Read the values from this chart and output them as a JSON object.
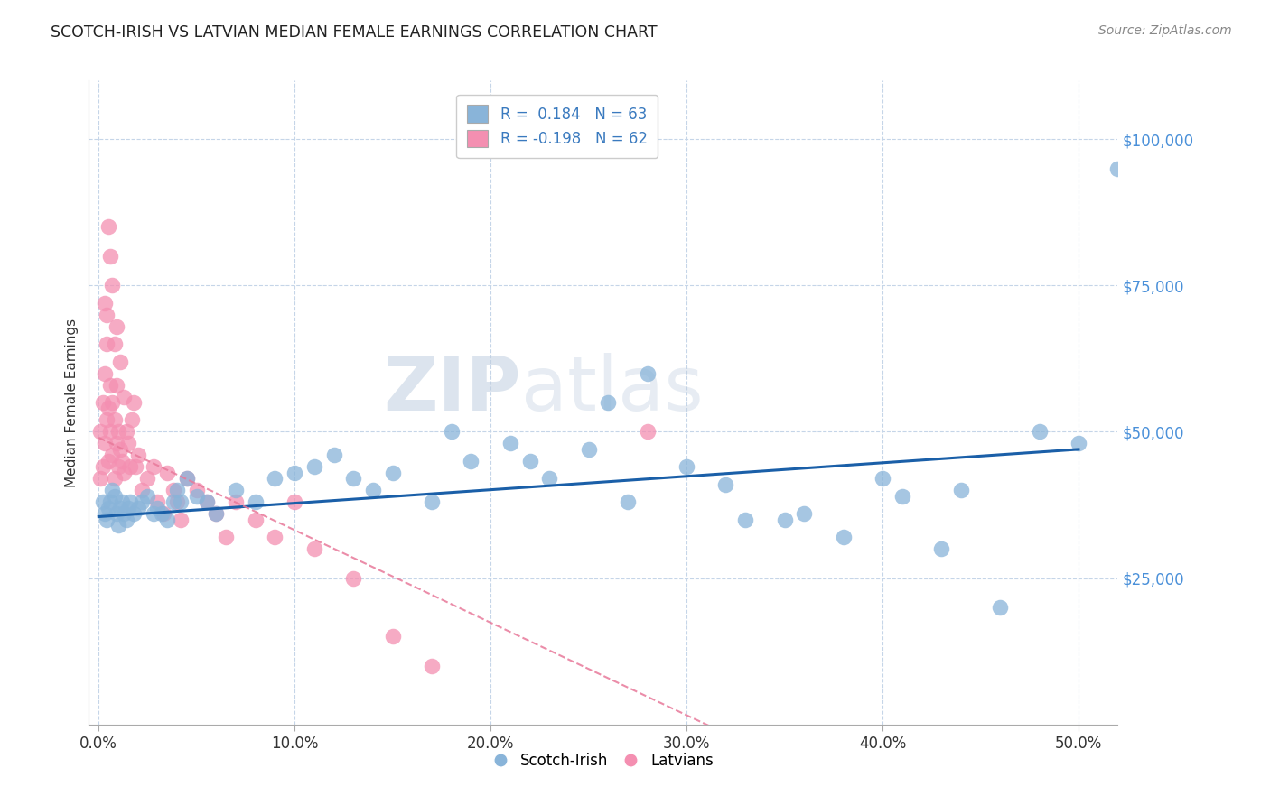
{
  "title": "SCOTCH-IRISH VS LATVIAN MEDIAN FEMALE EARNINGS CORRELATION CHART",
  "source": "Source: ZipAtlas.com",
  "ylabel": "Median Female Earnings",
  "x_tick_labels": [
    "0.0%",
    "10.0%",
    "20.0%",
    "30.0%",
    "40.0%",
    "50.0%"
  ],
  "x_tick_positions": [
    0.0,
    0.1,
    0.2,
    0.3,
    0.4,
    0.5
  ],
  "y_tick_labels": [
    "$25,000",
    "$50,000",
    "$75,000",
    "$100,000"
  ],
  "y_tick_values": [
    25000,
    50000,
    75000,
    100000
  ],
  "ylim": [
    0,
    110000
  ],
  "xlim": [
    -0.005,
    0.52
  ],
  "scotch_irish_color": "#89b4d9",
  "latvian_color": "#f48fb1",
  "line_scotch_color": "#1a5fa8",
  "line_latvian_color": "#e8799a",
  "watermark_zip": "ZIP",
  "watermark_atlas": "atlas",
  "scotch_irish_label": "Scotch-Irish",
  "latvian_label": "Latvians",
  "scotch_irish_x": [
    0.002,
    0.003,
    0.004,
    0.005,
    0.006,
    0.007,
    0.008,
    0.009,
    0.01,
    0.011,
    0.012,
    0.013,
    0.014,
    0.015,
    0.016,
    0.018,
    0.02,
    0.022,
    0.025,
    0.028,
    0.03,
    0.032,
    0.035,
    0.038,
    0.04,
    0.042,
    0.045,
    0.05,
    0.055,
    0.06,
    0.07,
    0.08,
    0.09,
    0.1,
    0.11,
    0.12,
    0.13,
    0.14,
    0.15,
    0.17,
    0.19,
    0.21,
    0.23,
    0.25,
    0.27,
    0.3,
    0.32,
    0.35,
    0.38,
    0.4,
    0.43,
    0.46,
    0.48,
    0.5,
    0.26,
    0.28,
    0.33,
    0.36,
    0.41,
    0.44,
    0.52,
    0.18,
    0.22
  ],
  "scotch_irish_y": [
    38000,
    36000,
    35000,
    37000,
    38000,
    40000,
    39000,
    36000,
    34000,
    37000,
    38000,
    36000,
    35000,
    37000,
    38000,
    36000,
    37000,
    38000,
    39000,
    36000,
    37000,
    36000,
    35000,
    38000,
    40000,
    38000,
    42000,
    39000,
    38000,
    36000,
    40000,
    38000,
    42000,
    43000,
    44000,
    46000,
    42000,
    40000,
    43000,
    38000,
    45000,
    48000,
    42000,
    47000,
    38000,
    44000,
    41000,
    35000,
    32000,
    42000,
    30000,
    20000,
    50000,
    48000,
    55000,
    60000,
    35000,
    36000,
    39000,
    40000,
    95000,
    50000,
    45000
  ],
  "latvian_x": [
    0.001,
    0.001,
    0.002,
    0.002,
    0.003,
    0.003,
    0.004,
    0.004,
    0.005,
    0.005,
    0.006,
    0.006,
    0.007,
    0.007,
    0.008,
    0.008,
    0.009,
    0.009,
    0.01,
    0.01,
    0.011,
    0.012,
    0.013,
    0.014,
    0.015,
    0.016,
    0.017,
    0.018,
    0.019,
    0.02,
    0.022,
    0.025,
    0.028,
    0.03,
    0.033,
    0.035,
    0.038,
    0.04,
    0.042,
    0.045,
    0.05,
    0.055,
    0.06,
    0.065,
    0.07,
    0.08,
    0.09,
    0.1,
    0.11,
    0.13,
    0.15,
    0.17,
    0.005,
    0.007,
    0.009,
    0.011,
    0.013,
    0.003,
    0.004,
    0.006,
    0.008,
    0.28
  ],
  "latvian_y": [
    42000,
    50000,
    55000,
    44000,
    48000,
    60000,
    52000,
    65000,
    54000,
    45000,
    50000,
    58000,
    55000,
    46000,
    52000,
    42000,
    48000,
    58000,
    44000,
    50000,
    47000,
    45000,
    43000,
    50000,
    48000,
    44000,
    52000,
    55000,
    44000,
    46000,
    40000,
    42000,
    44000,
    38000,
    36000,
    43000,
    40000,
    38000,
    35000,
    42000,
    40000,
    38000,
    36000,
    32000,
    38000,
    35000,
    32000,
    38000,
    30000,
    25000,
    15000,
    10000,
    85000,
    75000,
    68000,
    62000,
    56000,
    72000,
    70000,
    80000,
    65000,
    50000
  ]
}
